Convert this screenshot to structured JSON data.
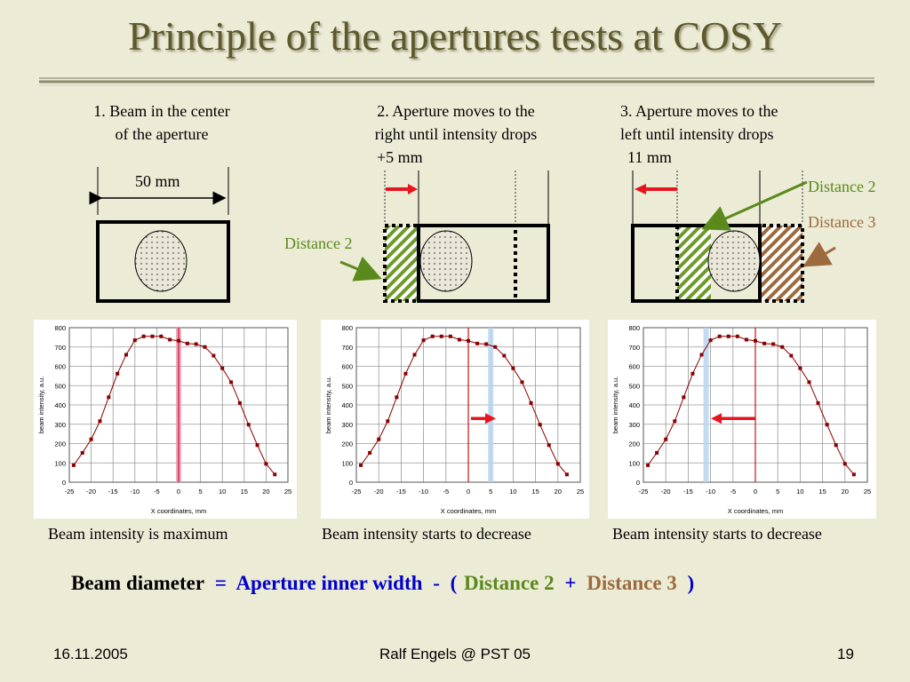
{
  "title": "Principle of the apertures tests at COSY",
  "steps": [
    {
      "line1": "1. Beam in the center",
      "line2": "of the aperture",
      "line3": ""
    },
    {
      "line1": "2. Aperture moves to the",
      "line2": "right until intensity drops",
      "line3": "+5 mm"
    },
    {
      "line1": "3. Aperture moves to the",
      "line2": "left until intensity drops",
      "line3": "11 mm"
    }
  ],
  "dimension_label": "50 mm",
  "labels": {
    "distance2": "Distance 2",
    "distance3": "Distance 3"
  },
  "captions": [
    "Beam intensity is maximum",
    "Beam intensity starts to decrease",
    "Beam intensity starts to decrease"
  ],
  "formula": {
    "lhs": "Beam diameter",
    "eq": "=",
    "term1": "Aperture inner width",
    "minus": "-",
    "open": "(",
    "term2": "Distance 2",
    "plus": "+",
    "term3": "Distance 3",
    "close": ")"
  },
  "footer": {
    "date": "16.11.2005",
    "author": "Ralf Engels @ PST 05",
    "page": "19"
  },
  "colors": {
    "title": "#5c5a2c",
    "green": "#5a8a1c",
    "brown": "#9c6a3c",
    "blue": "#0000cc",
    "red": "#e8141e",
    "curve": "#8b0000"
  },
  "chart_data": [
    {
      "type": "line",
      "xlabel": "X coordinates, mm",
      "ylabel": "beam intensity, a.u.",
      "xlim": [
        -25,
        25
      ],
      "ylim": [
        0,
        800
      ],
      "xticks": [
        "-25",
        "-20",
        "-15",
        "-10",
        "-5",
        "0",
        "5",
        "10",
        "15",
        "20",
        "25"
      ],
      "yticks": [
        "0",
        "100",
        "200",
        "300",
        "400",
        "500",
        "600",
        "700",
        "800"
      ],
      "x": [
        -24,
        -22,
        -20,
        -18,
        -16,
        -14,
        -12,
        -10,
        -8,
        -6,
        -4,
        -2,
        0,
        2,
        4,
        6,
        8,
        10,
        12,
        14,
        16,
        18,
        20,
        22
      ],
      "y": [
        88,
        152,
        222,
        316,
        440,
        562,
        660,
        735,
        755,
        755,
        755,
        738,
        732,
        718,
        715,
        700,
        655,
        590,
        518,
        410,
        298,
        192,
        95,
        40
      ],
      "marker_x": 0,
      "marker_color": "#e8a0c0",
      "arrow": "none"
    },
    {
      "type": "line",
      "xlabel": "X coordinates, mm",
      "ylabel": "beam intensity, a.u.",
      "xlim": [
        -25,
        25
      ],
      "ylim": [
        0,
        800
      ],
      "xticks": [
        "-25",
        "-20",
        "-15",
        "-10",
        "-5",
        "0",
        "5",
        "10",
        "15",
        "20",
        "25"
      ],
      "yticks": [
        "0",
        "100",
        "200",
        "300",
        "400",
        "500",
        "600",
        "700",
        "800"
      ],
      "x": [
        -24,
        -22,
        -20,
        -18,
        -16,
        -14,
        -12,
        -10,
        -8,
        -6,
        -4,
        -2,
        0,
        2,
        4,
        6,
        8,
        10,
        12,
        14,
        16,
        18,
        20,
        22
      ],
      "y": [
        88,
        152,
        222,
        316,
        440,
        562,
        660,
        735,
        755,
        755,
        755,
        738,
        732,
        718,
        715,
        700,
        655,
        590,
        518,
        410,
        298,
        192,
        95,
        40
      ],
      "ref_x": 0,
      "marker_x": 5,
      "marker_color": "#b8d6f0",
      "arrow": "right"
    },
    {
      "type": "line",
      "xlabel": "X coordinates, mm",
      "ylabel": "beam intensity, a.u.",
      "xlim": [
        -25,
        25
      ],
      "ylim": [
        0,
        800
      ],
      "xticks": [
        "-25",
        "-20",
        "-15",
        "-10",
        "-5",
        "0",
        "5",
        "10",
        "15",
        "20",
        "25"
      ],
      "yticks": [
        "0",
        "100",
        "200",
        "300",
        "400",
        "500",
        "600",
        "700",
        "800"
      ],
      "x": [
        -24,
        -22,
        -20,
        -18,
        -16,
        -14,
        -12,
        -10,
        -8,
        -6,
        -4,
        -2,
        0,
        2,
        4,
        6,
        8,
        10,
        12,
        14,
        16,
        18,
        20,
        22
      ],
      "y": [
        88,
        152,
        222,
        316,
        440,
        562,
        660,
        735,
        755,
        755,
        755,
        738,
        732,
        718,
        715,
        700,
        655,
        590,
        518,
        410,
        298,
        192,
        95,
        40
      ],
      "ref_x": 0,
      "marker_x": -11,
      "marker_color": "#b8d6f0",
      "arrow": "left"
    }
  ]
}
